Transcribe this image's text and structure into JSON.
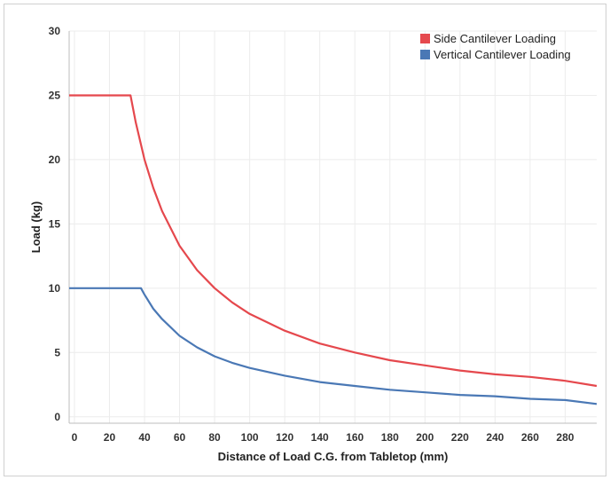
{
  "chart_data": {
    "type": "line",
    "title": "",
    "xlabel": "Distance of Load C.G. from Tabletop (mm)",
    "ylabel": "Load (kg)",
    "xlim": [
      -3,
      298
    ],
    "ylim": [
      -0.5,
      30
    ],
    "grid": true,
    "legend_position": "top-right",
    "x_ticks": [
      0,
      20,
      40,
      60,
      80,
      100,
      120,
      140,
      160,
      180,
      200,
      220,
      240,
      260,
      280
    ],
    "y_ticks": [
      0,
      5,
      10,
      15,
      20,
      25,
      30
    ],
    "series": [
      {
        "name": "Side Cantilever Loading",
        "color": "#e5484d",
        "x": [
          -3,
          32,
          35,
          40,
          45,
          50,
          60,
          70,
          80,
          90,
          100,
          120,
          140,
          160,
          180,
          200,
          220,
          240,
          260,
          280,
          298
        ],
        "y": [
          25,
          25,
          22.9,
          20.0,
          17.8,
          16.0,
          13.3,
          11.4,
          10.0,
          8.9,
          8.0,
          6.7,
          5.7,
          5.0,
          4.4,
          4.0,
          3.6,
          3.3,
          3.1,
          2.8,
          2.4
        ]
      },
      {
        "name": "Vertical Cantilever Loading",
        "color": "#4a78b5",
        "x": [
          -3,
          38,
          40,
          45,
          50,
          60,
          70,
          80,
          90,
          100,
          120,
          140,
          160,
          180,
          200,
          220,
          240,
          260,
          280,
          298
        ],
        "y": [
          10,
          10,
          9.5,
          8.4,
          7.6,
          6.3,
          5.4,
          4.7,
          4.2,
          3.8,
          3.2,
          2.7,
          2.4,
          2.1,
          1.9,
          1.7,
          1.6,
          1.4,
          1.3,
          1.0
        ]
      }
    ]
  }
}
